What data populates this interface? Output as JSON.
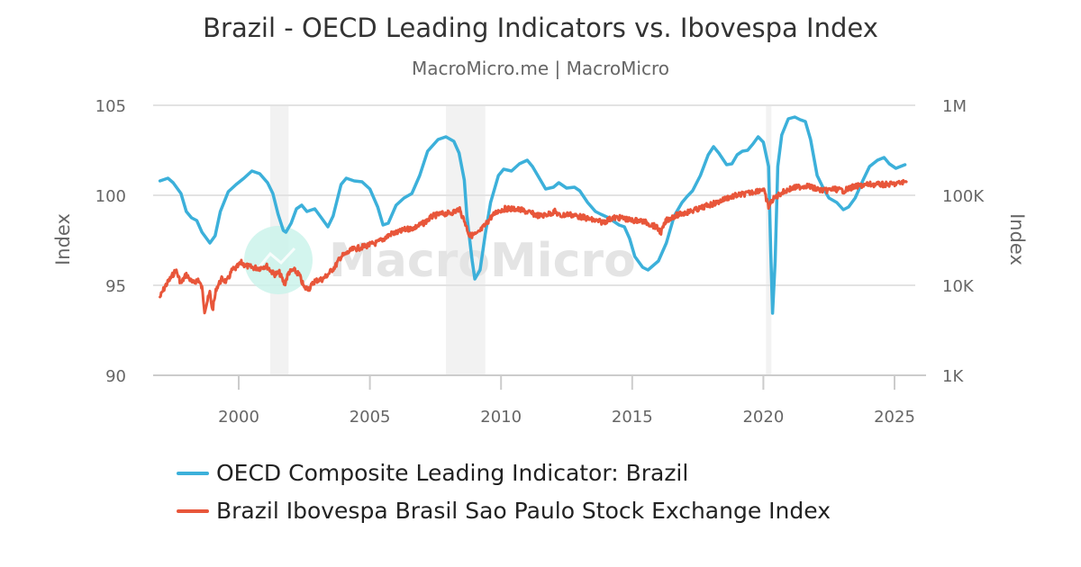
{
  "chart_data": {
    "type": "line",
    "title": "Brazil - OECD Leading Indicators vs. Ibovespa Index",
    "subtitle": "MacroMicro.me | MacroMicro",
    "watermark": "MacroMicro",
    "x_ticks": [
      "2000",
      "2005",
      "2010",
      "2015",
      "2020",
      "2025"
    ],
    "xlim": [
      1996.7,
      2025.8
    ],
    "y_left": {
      "label": "Index",
      "ylim": [
        90,
        105
      ],
      "ticks": [
        "90",
        "95",
        "100",
        "105"
      ]
    },
    "y_right": {
      "label": "Index",
      "scale": "log",
      "ylim": [
        1000,
        1000000
      ],
      "ticks": [
        "1K",
        "10K",
        "100K",
        "1M"
      ]
    },
    "grid": true,
    "legend_position": "bottom",
    "recession_bands": [
      [
        2001.2,
        2001.9
      ],
      [
        2007.9,
        2009.4
      ],
      [
        2020.1,
        2020.3
      ]
    ],
    "band_color": "#f2f2f2",
    "series": [
      {
        "name": "OECD Composite Leading Indicator: Brazil",
        "color": "#3cb0da",
        "axis": "left",
        "x": [
          1997.0,
          1997.3,
          1997.5,
          1997.8,
          1998.0,
          1998.2,
          1998.4,
          1998.6,
          1998.9,
          1999.1,
          1999.3,
          1999.6,
          1999.9,
          2000.2,
          2000.5,
          2000.8,
          2001.1,
          2001.3,
          2001.5,
          2001.7,
          2001.8,
          2002.0,
          2002.2,
          2002.4,
          2002.6,
          2002.9,
          2003.1,
          2003.4,
          2003.6,
          2003.9,
          2004.1,
          2004.4,
          2004.7,
          2005.0,
          2005.3,
          2005.5,
          2005.7,
          2006.0,
          2006.3,
          2006.6,
          2006.9,
          2007.2,
          2007.6,
          2007.9,
          2008.2,
          2008.4,
          2008.6,
          2008.7,
          2008.9,
          2009.0,
          2009.2,
          2009.4,
          2009.6,
          2009.9,
          2010.1,
          2010.4,
          2010.7,
          2011.0,
          2011.2,
          2011.5,
          2011.7,
          2012.0,
          2012.2,
          2012.5,
          2012.8,
          2013.0,
          2013.3,
          2013.6,
          2013.8,
          2014.1,
          2014.5,
          2014.7,
          2014.9,
          2015.1,
          2015.4,
          2015.6,
          2015.8,
          2016.0,
          2016.3,
          2016.6,
          2016.9,
          2017.1,
          2017.3,
          2017.6,
          2017.9,
          2018.1,
          2018.3,
          2018.6,
          2018.8,
          2019.0,
          2019.2,
          2019.4,
          2019.6,
          2019.8,
          2020.0,
          2020.2,
          2020.28,
          2020.35,
          2020.45,
          2020.55,
          2020.7,
          2020.95,
          2021.2,
          2021.4,
          2021.6,
          2021.8,
          2022.05,
          2022.3,
          2022.5,
          2022.8,
          2023.05,
          2023.25,
          2023.5,
          2023.8,
          2024.05,
          2024.35,
          2024.6,
          2024.8,
          2025.05,
          2025.4
        ],
        "y": [
          100.8,
          100.95,
          100.7,
          100.1,
          99.1,
          98.75,
          98.6,
          97.95,
          97.35,
          97.75,
          99.1,
          100.2,
          100.6,
          100.95,
          101.35,
          101.2,
          100.7,
          100.1,
          98.95,
          98.05,
          97.95,
          98.45,
          99.25,
          99.45,
          99.1,
          99.25,
          98.85,
          98.25,
          98.85,
          100.6,
          100.95,
          100.8,
          100.75,
          100.35,
          99.35,
          98.35,
          98.45,
          99.45,
          99.85,
          100.1,
          101.1,
          102.45,
          103.1,
          103.25,
          103.0,
          102.35,
          100.85,
          98.85,
          96.35,
          95.35,
          95.85,
          97.85,
          99.6,
          101.1,
          101.45,
          101.35,
          101.75,
          101.95,
          101.6,
          100.85,
          100.35,
          100.45,
          100.7,
          100.4,
          100.45,
          100.25,
          99.6,
          99.1,
          98.95,
          98.75,
          98.35,
          98.25,
          97.6,
          96.6,
          96.0,
          95.85,
          96.1,
          96.35,
          97.35,
          98.85,
          99.6,
          99.95,
          100.25,
          101.1,
          102.25,
          102.7,
          102.35,
          101.7,
          101.75,
          102.25,
          102.45,
          102.5,
          102.85,
          103.25,
          102.95,
          101.6,
          96.85,
          93.45,
          96.35,
          101.6,
          103.35,
          104.25,
          104.35,
          104.2,
          104.1,
          103.1,
          101.1,
          100.35,
          99.85,
          99.6,
          99.2,
          99.35,
          99.85,
          100.85,
          101.6,
          101.95,
          102.1,
          101.75,
          101.5,
          101.7
        ]
      },
      {
        "name": "Brazil Ibovespa Brasil Sao Paulo Stock Exchange Index",
        "color": "#e8563a",
        "axis": "right",
        "x": [
          1997.0,
          1997.2,
          1997.5,
          1997.6,
          1997.8,
          1998.0,
          1998.25,
          1998.45,
          1998.6,
          1998.7,
          1998.9,
          1999.0,
          1999.15,
          1999.35,
          1999.55,
          1999.75,
          1999.9,
          2000.1,
          2000.25,
          2000.5,
          2000.8,
          2001.05,
          2001.2,
          2001.35,
          2001.55,
          2001.75,
          2001.9,
          2002.1,
          2002.3,
          2002.5,
          2002.7,
          2002.9,
          2003.2,
          2003.4,
          2003.7,
          2003.9,
          2004.1,
          2004.35,
          2004.65,
          2005.0,
          2005.25,
          2005.55,
          2005.8,
          2006.1,
          2006.35,
          2006.7,
          2007.05,
          2007.4,
          2007.7,
          2008.0,
          2008.25,
          2008.4,
          2008.6,
          2008.8,
          2009.1,
          2009.4,
          2009.6,
          2009.85,
          2010.15,
          2010.4,
          2010.7,
          2010.95,
          2011.25,
          2011.5,
          2011.8,
          2012.05,
          2012.25,
          2012.55,
          2012.9,
          2013.2,
          2013.55,
          2013.9,
          2014.25,
          2014.6,
          2014.95,
          2015.3,
          2015.6,
          2015.9,
          2016.1,
          2016.3,
          2016.6,
          2016.85,
          2017.2,
          2017.55,
          2017.9,
          2018.25,
          2018.6,
          2019.0,
          2019.4,
          2019.75,
          2020.0,
          2020.2,
          2020.35,
          2020.65,
          2021.0,
          2021.3,
          2021.65,
          2022.0,
          2022.35,
          2022.7,
          2023.05,
          2023.4,
          2023.75,
          2024.05,
          2024.4,
          2024.75,
          2025.1,
          2025.45
        ],
        "y": [
          7400,
          9800,
          13200,
          14800,
          10500,
          13200,
          10500,
          11700,
          9300,
          5250,
          8300,
          5250,
          9300,
          11700,
          11000,
          14800,
          15500,
          17800,
          16600,
          15800,
          15500,
          16600,
          14800,
          13200,
          13800,
          10200,
          13800,
          14800,
          13200,
          9300,
          9300,
          11200,
          11700,
          13200,
          16600,
          20900,
          22400,
          25100,
          26300,
          28200,
          29500,
          33100,
          37200,
          38900,
          41700,
          43700,
          49000,
          58900,
          61700,
          63100,
          66100,
          70800,
          52500,
          35500,
          37200,
          46800,
          56200,
          66100,
          70800,
          70800,
          69200,
          66100,
          61700,
          58900,
          61700,
          66100,
          58900,
          61700,
          58900,
          56200,
          52500,
          50100,
          56200,
          56200,
          52500,
          52500,
          49000,
          44700,
          38900,
          52500,
          58900,
          61700,
          66100,
          70800,
          77600,
          83200,
          93300,
          100000,
          104700,
          112200,
          117500,
          74100,
          89100,
          104700,
          117500,
          123000,
          128800,
          117500,
          112200,
          117500,
          112200,
          123000,
          128800,
          131800,
          131800,
          131800,
          134900,
          141300
        ]
      }
    ]
  }
}
